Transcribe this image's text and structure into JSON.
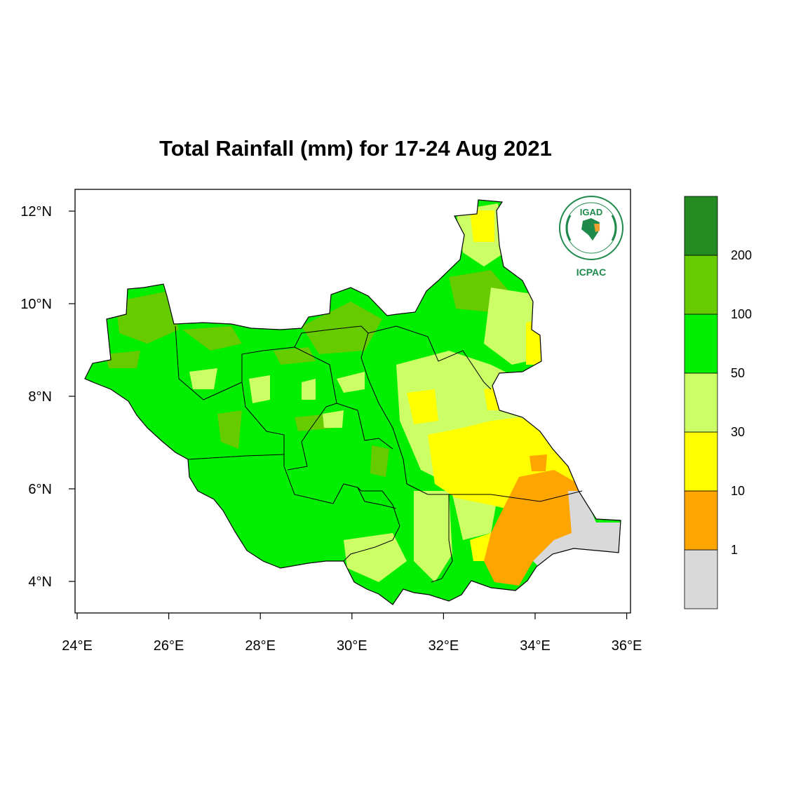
{
  "title": "Total Rainfall (mm) for 17-24 Aug 2021",
  "x_axis": {
    "ticks": [
      "24°E",
      "26°E",
      "28°E",
      "30°E",
      "32°E",
      "34°E",
      "36°E"
    ],
    "values": [
      24,
      26,
      28,
      30,
      32,
      34,
      36
    ],
    "range": [
      24,
      36
    ]
  },
  "y_axis": {
    "ticks": [
      "4°N",
      "6°N",
      "8°N",
      "10°N",
      "12°N"
    ],
    "values": [
      4,
      6,
      8,
      10,
      12
    ],
    "range": [
      3.4,
      12.45
    ]
  },
  "legend": {
    "colors": [
      "#d9d9d9",
      "#ffa500",
      "#ffff00",
      "#ccff66",
      "#00ee00",
      "#66cc00",
      "#228b22"
    ],
    "labels": [
      "1",
      "10",
      "30",
      "50",
      "100",
      "200"
    ]
  },
  "logo": {
    "name": "IGAD",
    "caption": "ICPAC",
    "colors": {
      "green": "#1f8a4c",
      "orange": "#f0a030"
    }
  }
}
